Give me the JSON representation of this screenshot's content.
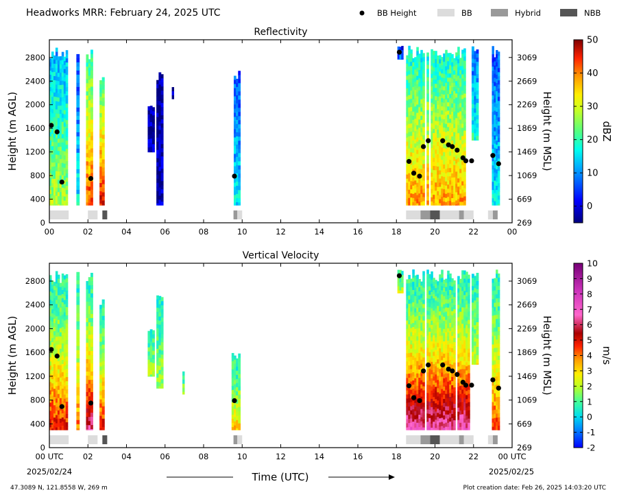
{
  "header": {
    "title": "Headworks MRR:  February 24, 2025 UTC",
    "legend": [
      {
        "label": "BB Height",
        "kind": "dot",
        "color": "#000000"
      },
      {
        "label": "BB",
        "kind": "box",
        "color": "#dcdcdc"
      },
      {
        "label": "Hybrid",
        "kind": "box",
        "color": "#999999"
      },
      {
        "label": "NBB",
        "kind": "box",
        "color": "#555555"
      }
    ]
  },
  "chart_data": [
    {
      "type": "heatmap",
      "title": "Reflectivity",
      "ylabel": "Height (m AGL)",
      "y2label": "Height (m MSL)",
      "xlim": [
        0,
        24
      ],
      "ylim": [
        0,
        3100
      ],
      "x_ticklabels": [
        "00",
        "02",
        "04",
        "06",
        "08",
        "10",
        "12",
        "14",
        "16",
        "18",
        "20",
        "22",
        "00"
      ],
      "y_ticks": [
        0,
        400,
        800,
        1200,
        1600,
        2000,
        2400,
        2800
      ],
      "y2_ticklabels": [
        "269",
        "669",
        "1069",
        "1469",
        "1869",
        "2269",
        "2669",
        "3069"
      ],
      "colorbar": {
        "label": "dBZ",
        "min": -5,
        "max": 50,
        "ticks": [
          0,
          10,
          20,
          30,
          40,
          50
        ]
      },
      "bb_height": {
        "x": [
          0.1,
          0.4,
          0.65,
          2.15,
          9.6,
          18.15,
          18.65,
          18.9,
          19.2,
          19.4,
          19.65,
          20.4,
          20.7,
          20.9,
          21.15,
          21.45,
          21.6,
          21.9,
          23.0,
          23.3
        ],
        "y": [
          1650,
          1540,
          690,
          750,
          790,
          2890,
          1040,
          840,
          790,
          1290,
          1390,
          1390,
          1320,
          1290,
          1230,
          1100,
          1050,
          1050,
          1140,
          1000
        ]
      },
      "bb_classification": [
        {
          "start": 0.0,
          "end": 1.0,
          "class": "BB"
        },
        {
          "start": 2.0,
          "end": 2.5,
          "class": "BB"
        },
        {
          "start": 2.75,
          "end": 3.0,
          "class": "NBB"
        },
        {
          "start": 9.55,
          "end": 9.75,
          "class": "Hybrid"
        },
        {
          "start": 9.75,
          "end": 10.0,
          "class": "BB"
        },
        {
          "start": 18.5,
          "end": 19.25,
          "class": "BB"
        },
        {
          "start": 19.25,
          "end": 19.75,
          "class": "Hybrid"
        },
        {
          "start": 19.75,
          "end": 20.25,
          "class": "NBB"
        },
        {
          "start": 20.25,
          "end": 21.25,
          "class": "BB"
        },
        {
          "start": 21.25,
          "end": 21.5,
          "class": "Hybrid"
        },
        {
          "start": 21.5,
          "end": 22.0,
          "class": "BB"
        },
        {
          "start": 22.75,
          "end": 23.0,
          "class": "BB"
        },
        {
          "start": 23.0,
          "end": 23.25,
          "class": "Hybrid"
        }
      ],
      "precip_segments": [
        {
          "start": 0.0,
          "end": 0.95,
          "top": 2980,
          "bottom": 300,
          "intensity": 0.55
        },
        {
          "start": 1.4,
          "end": 1.55,
          "top": 2980,
          "bottom": 300,
          "intensity": 0.35
        },
        {
          "start": 1.9,
          "end": 2.25,
          "top": 2980,
          "bottom": 300,
          "intensity": 0.8
        },
        {
          "start": 2.6,
          "end": 2.85,
          "top": 2500,
          "bottom": 300,
          "intensity": 0.85
        },
        {
          "start": 5.1,
          "end": 5.45,
          "top": 2000,
          "bottom": 1200,
          "intensity": 0.05
        },
        {
          "start": 5.55,
          "end": 5.9,
          "top": 2600,
          "bottom": 300,
          "intensity": 0.05
        },
        {
          "start": 6.35,
          "end": 6.45,
          "top": 2300,
          "bottom": 2100,
          "intensity": 0.1
        },
        {
          "start": 9.45,
          "end": 9.9,
          "top": 2580,
          "bottom": 300,
          "intensity": 0.35
        },
        {
          "start": 18.05,
          "end": 18.35,
          "top": 3000,
          "bottom": 2770,
          "intensity": 0.25
        },
        {
          "start": 18.5,
          "end": 21.8,
          "top": 3000,
          "bottom": 300,
          "intensity": 0.72
        },
        {
          "start": 21.9,
          "end": 22.25,
          "top": 3000,
          "bottom": 1400,
          "intensity": 0.4
        },
        {
          "start": 22.95,
          "end": 23.35,
          "top": 3000,
          "bottom": 300,
          "intensity": 0.35
        }
      ]
    },
    {
      "type": "heatmap",
      "title": "Vertical Velocity",
      "ylabel": "Height (m AGL)",
      "y2label": "Height (m MSL)",
      "xlabel": "Time (UTC)",
      "xlim": [
        0,
        24
      ],
      "ylim": [
        0,
        3100
      ],
      "x_ticklabels": [
        "00 UTC",
        "02",
        "04",
        "06",
        "08",
        "10",
        "12",
        "14",
        "16",
        "18",
        "20",
        "22",
        "00 UTC"
      ],
      "x_date_left": "2025/02/24",
      "x_date_right": "2025/02/25",
      "y_ticks": [
        0,
        400,
        800,
        1200,
        1600,
        2000,
        2400,
        2800
      ],
      "y2_ticklabels": [
        "269",
        "669",
        "1069",
        "1469",
        "1869",
        "2269",
        "2669",
        "3069"
      ],
      "colorbar": {
        "label": "m/s",
        "min": -2,
        "max": 10,
        "ticks": [
          -2,
          -1,
          0,
          1,
          2,
          3,
          4,
          5,
          6,
          7,
          8,
          9,
          10
        ]
      },
      "bb_height": {
        "x": [
          0.1,
          0.4,
          0.65,
          2.15,
          9.6,
          18.15,
          18.65,
          18.9,
          19.2,
          19.4,
          19.65,
          20.4,
          20.7,
          20.9,
          21.15,
          21.45,
          21.6,
          21.9,
          23.0,
          23.3
        ],
        "y": [
          1650,
          1540,
          690,
          750,
          790,
          2890,
          1040,
          840,
          790,
          1290,
          1390,
          1390,
          1320,
          1290,
          1230,
          1100,
          1050,
          1050,
          1140,
          1000
        ]
      },
      "bb_classification": [
        {
          "start": 0.0,
          "end": 1.0,
          "class": "BB"
        },
        {
          "start": 2.0,
          "end": 2.5,
          "class": "BB"
        },
        {
          "start": 2.75,
          "end": 3.0,
          "class": "NBB"
        },
        {
          "start": 9.55,
          "end": 9.75,
          "class": "Hybrid"
        },
        {
          "start": 9.75,
          "end": 10.0,
          "class": "BB"
        },
        {
          "start": 18.5,
          "end": 19.25,
          "class": "BB"
        },
        {
          "start": 19.25,
          "end": 19.75,
          "class": "Hybrid"
        },
        {
          "start": 19.75,
          "end": 20.25,
          "class": "NBB"
        },
        {
          "start": 20.25,
          "end": 21.25,
          "class": "BB"
        },
        {
          "start": 21.25,
          "end": 21.5,
          "class": "Hybrid"
        },
        {
          "start": 21.5,
          "end": 22.0,
          "class": "BB"
        },
        {
          "start": 22.75,
          "end": 23.0,
          "class": "BB"
        },
        {
          "start": 23.0,
          "end": 23.25,
          "class": "Hybrid"
        }
      ],
      "precip_segments": [
        {
          "start": 0.0,
          "end": 0.95,
          "top": 2980,
          "bottom": 300,
          "intensity": 0.5
        },
        {
          "start": 1.4,
          "end": 1.55,
          "top": 2980,
          "bottom": 300,
          "intensity": 0.4
        },
        {
          "start": 1.9,
          "end": 2.25,
          "top": 2980,
          "bottom": 300,
          "intensity": 0.65
        },
        {
          "start": 2.6,
          "end": 2.85,
          "top": 2500,
          "bottom": 300,
          "intensity": 0.5
        },
        {
          "start": 5.1,
          "end": 5.45,
          "top": 2000,
          "bottom": 1200,
          "intensity": 0.15
        },
        {
          "start": 5.55,
          "end": 5.9,
          "top": 2600,
          "bottom": 1000,
          "intensity": 0.15
        },
        {
          "start": 6.9,
          "end": 7.0,
          "top": 1300,
          "bottom": 900,
          "intensity": 0.15
        },
        {
          "start": 9.45,
          "end": 9.9,
          "top": 1600,
          "bottom": 300,
          "intensity": 0.3
        },
        {
          "start": 18.05,
          "end": 18.35,
          "top": 3000,
          "bottom": 2600,
          "intensity": 0.2
        },
        {
          "start": 18.5,
          "end": 21.8,
          "top": 3000,
          "bottom": 300,
          "intensity": 0.7
        },
        {
          "start": 21.9,
          "end": 22.25,
          "top": 3000,
          "bottom": 1400,
          "intensity": 0.2
        },
        {
          "start": 22.95,
          "end": 23.35,
          "top": 3000,
          "bottom": 300,
          "intensity": 0.45
        }
      ]
    }
  ],
  "footer": {
    "location": "47.3089 N, 121.8558 W, 269 m",
    "creation_date": "Plot creation date: Feb 26, 2025 14:03:20 UTC"
  }
}
